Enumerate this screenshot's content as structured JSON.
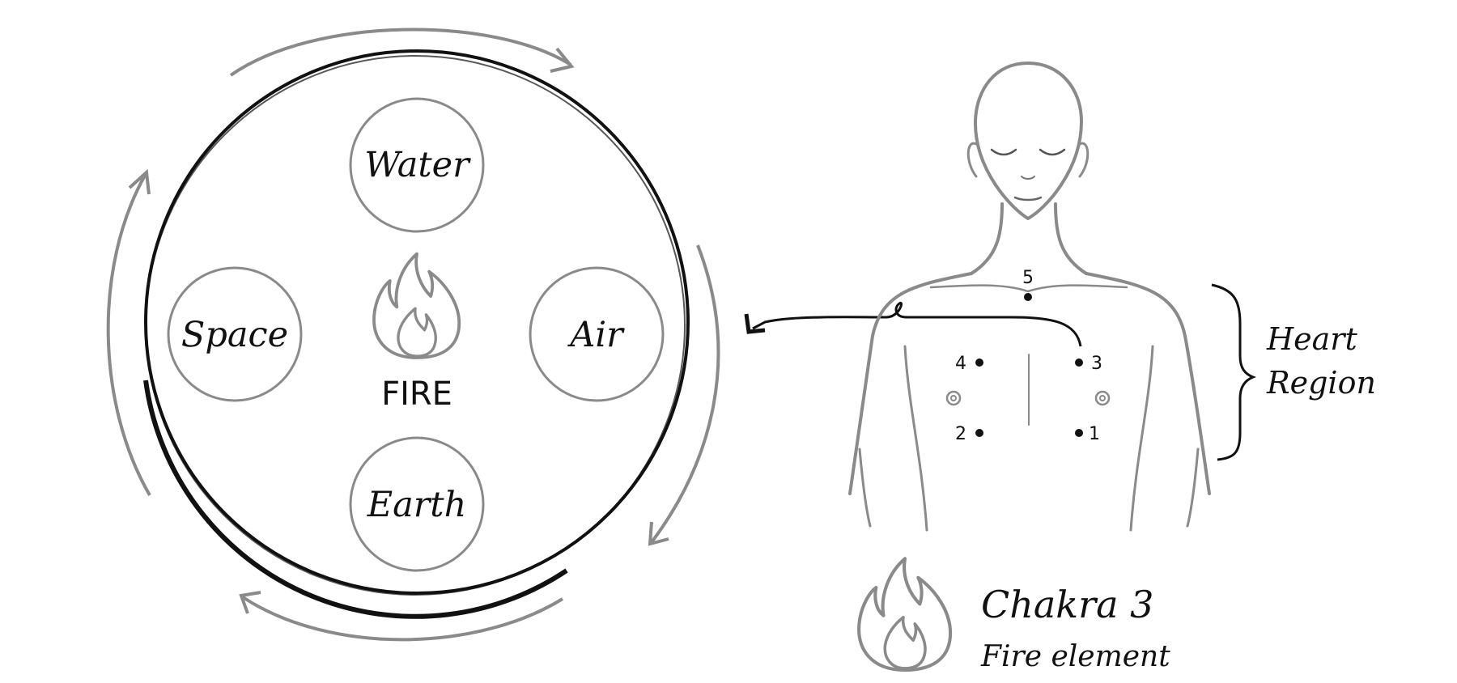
{
  "wheel": {
    "center_element": "FIRE",
    "elements": {
      "top": "Water",
      "left": "Space",
      "right": "Air",
      "bottom": "Earth"
    }
  },
  "body": {
    "points": {
      "p5": "5",
      "p4": "4",
      "p3": "3",
      "p2": "2",
      "p1": "1"
    },
    "region_label_line1": "Heart",
    "region_label_line2": "Region"
  },
  "chakra": {
    "title": "Chakra 3",
    "subtitle": "Fire element"
  },
  "colors": {
    "ink": "#111111",
    "pencil_grey": "#8a8a8a"
  },
  "icons": [
    "flame-icon",
    "flame-icon",
    "cycle-arrow"
  ]
}
